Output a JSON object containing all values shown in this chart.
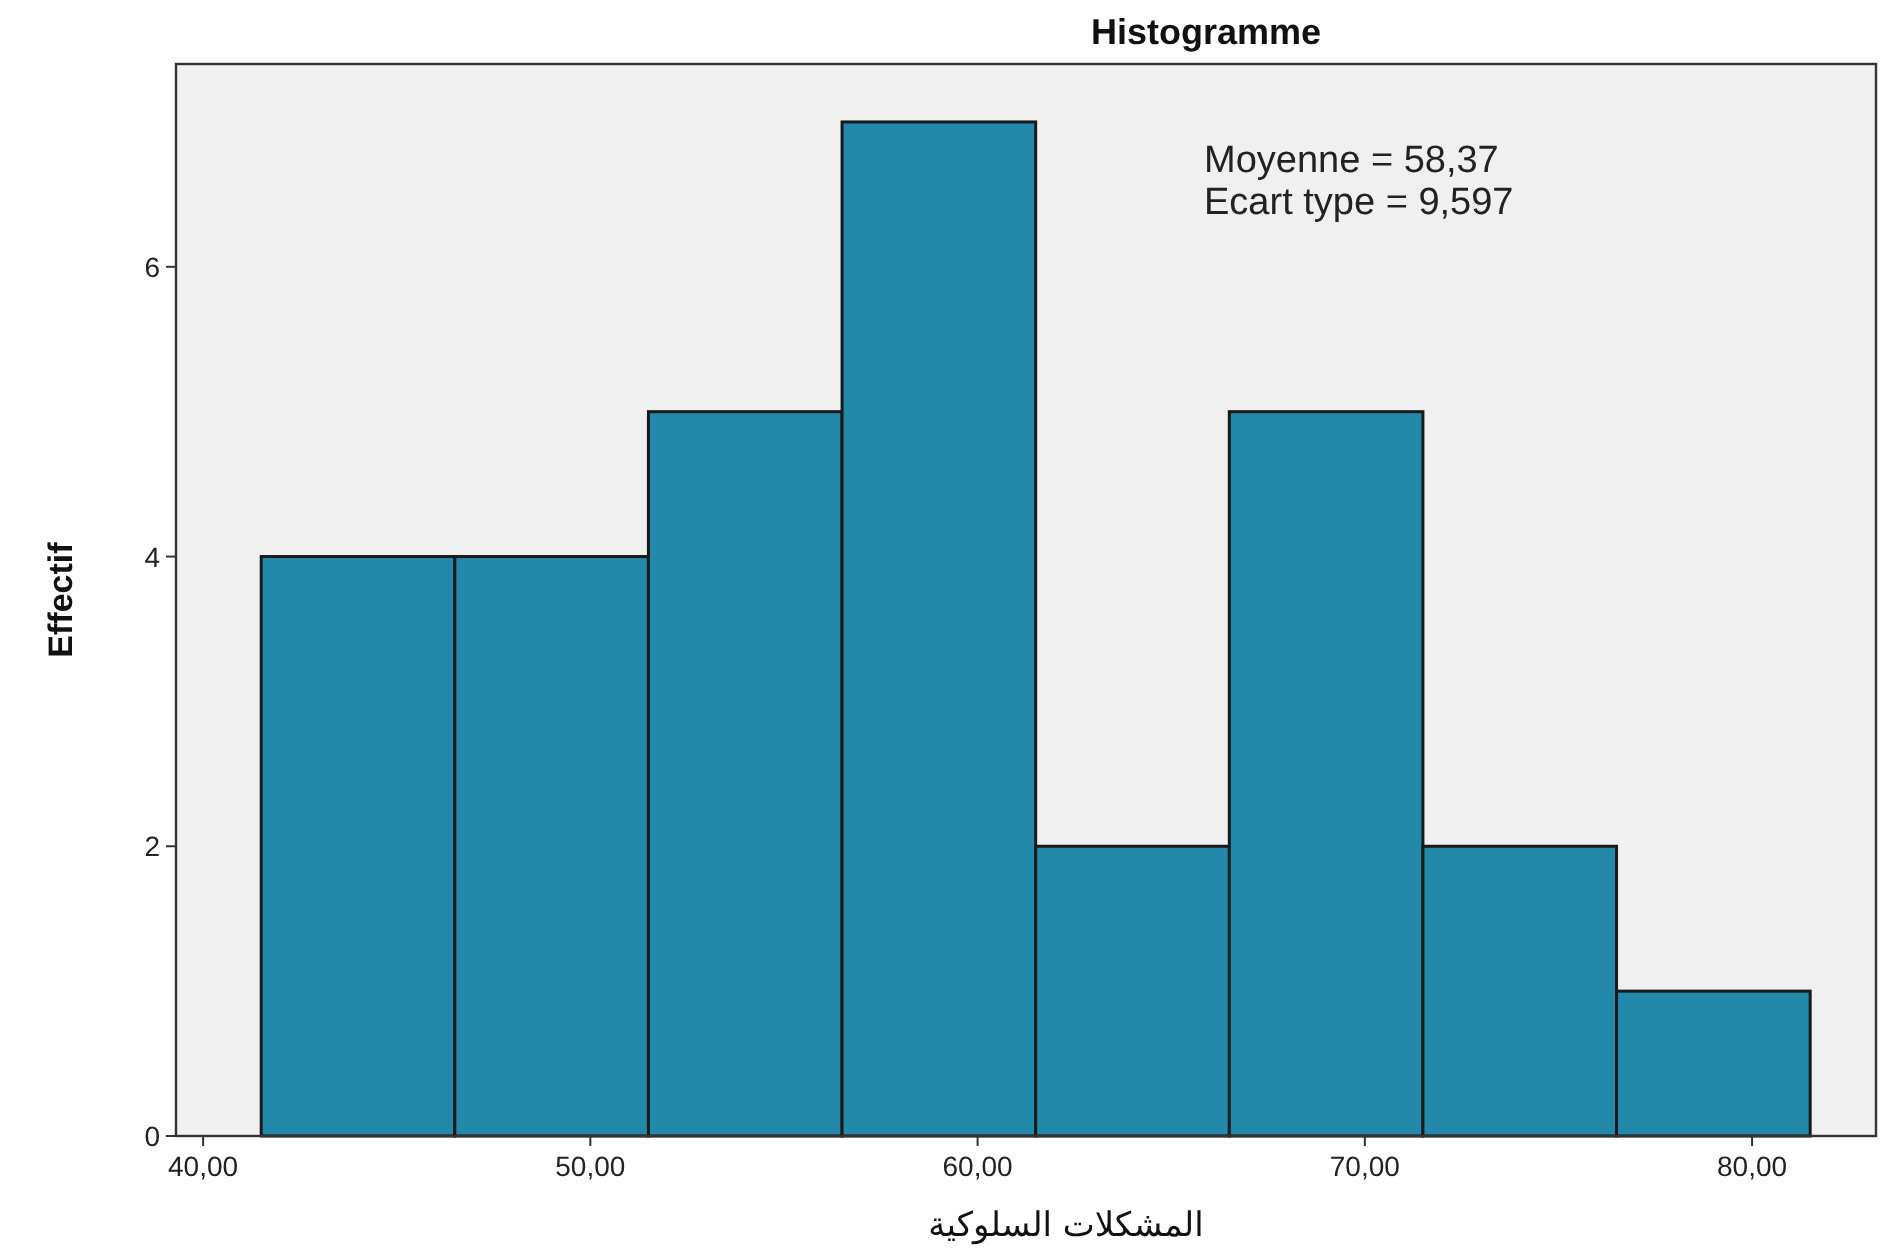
{
  "chart_data": {
    "type": "histogram",
    "title": "Histogramme",
    "xlabel": "المشكلات السلوكية",
    "ylabel": "Effectif",
    "bins": [
      41.5,
      46.5,
      51.5,
      56.5,
      61.5,
      66.5,
      71.5,
      76.5,
      81.5
    ],
    "values": [
      4,
      4,
      5,
      7,
      2,
      5,
      2,
      1
    ],
    "color": "#2389ab",
    "xlim": [
      39.3,
      83.2
    ],
    "ylim": [
      0,
      7.4
    ],
    "xticks": [
      {
        "value": 40,
        "label": "40,00"
      },
      {
        "value": 50,
        "label": "50,00"
      },
      {
        "value": 60,
        "label": "60,00"
      },
      {
        "value": 70,
        "label": "70,00"
      },
      {
        "value": 80,
        "label": "80,00"
      }
    ],
    "yticks": [
      0,
      2,
      4,
      6
    ],
    "grid": false,
    "annotations": [
      "Moyenne = 58,37",
      "Ecart type = 9,597"
    ]
  }
}
